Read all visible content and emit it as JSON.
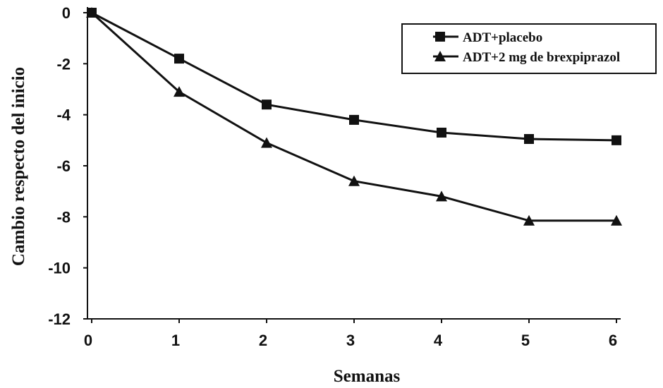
{
  "chart_data": {
    "type": "line",
    "title": "",
    "xlabel": "Semanas",
    "ylabel": "Cambio respecto del inicio",
    "x": [
      0,
      1,
      2,
      3,
      4,
      5,
      6
    ],
    "xlim": [
      0,
      6
    ],
    "ylim": [
      -12,
      0
    ],
    "xticks": [
      "0",
      "1",
      "2",
      "3",
      "4",
      "5",
      "6"
    ],
    "yticks": [
      "0",
      "-2",
      "-4",
      "-6",
      "-8",
      "-10",
      "-12"
    ],
    "grid": false,
    "legend_position": "top-right",
    "series": [
      {
        "name": "ADT+placebo",
        "marker": "square",
        "values": [
          0,
          -1.8,
          -3.6,
          -4.2,
          -4.7,
          -4.95,
          -5.0
        ]
      },
      {
        "name": "ADT+2 mg de brexpiprazol",
        "marker": "triangle",
        "values": [
          0,
          -3.1,
          -5.1,
          -6.6,
          -7.2,
          -8.15,
          -8.15
        ]
      }
    ],
    "line_color": "#111111"
  }
}
